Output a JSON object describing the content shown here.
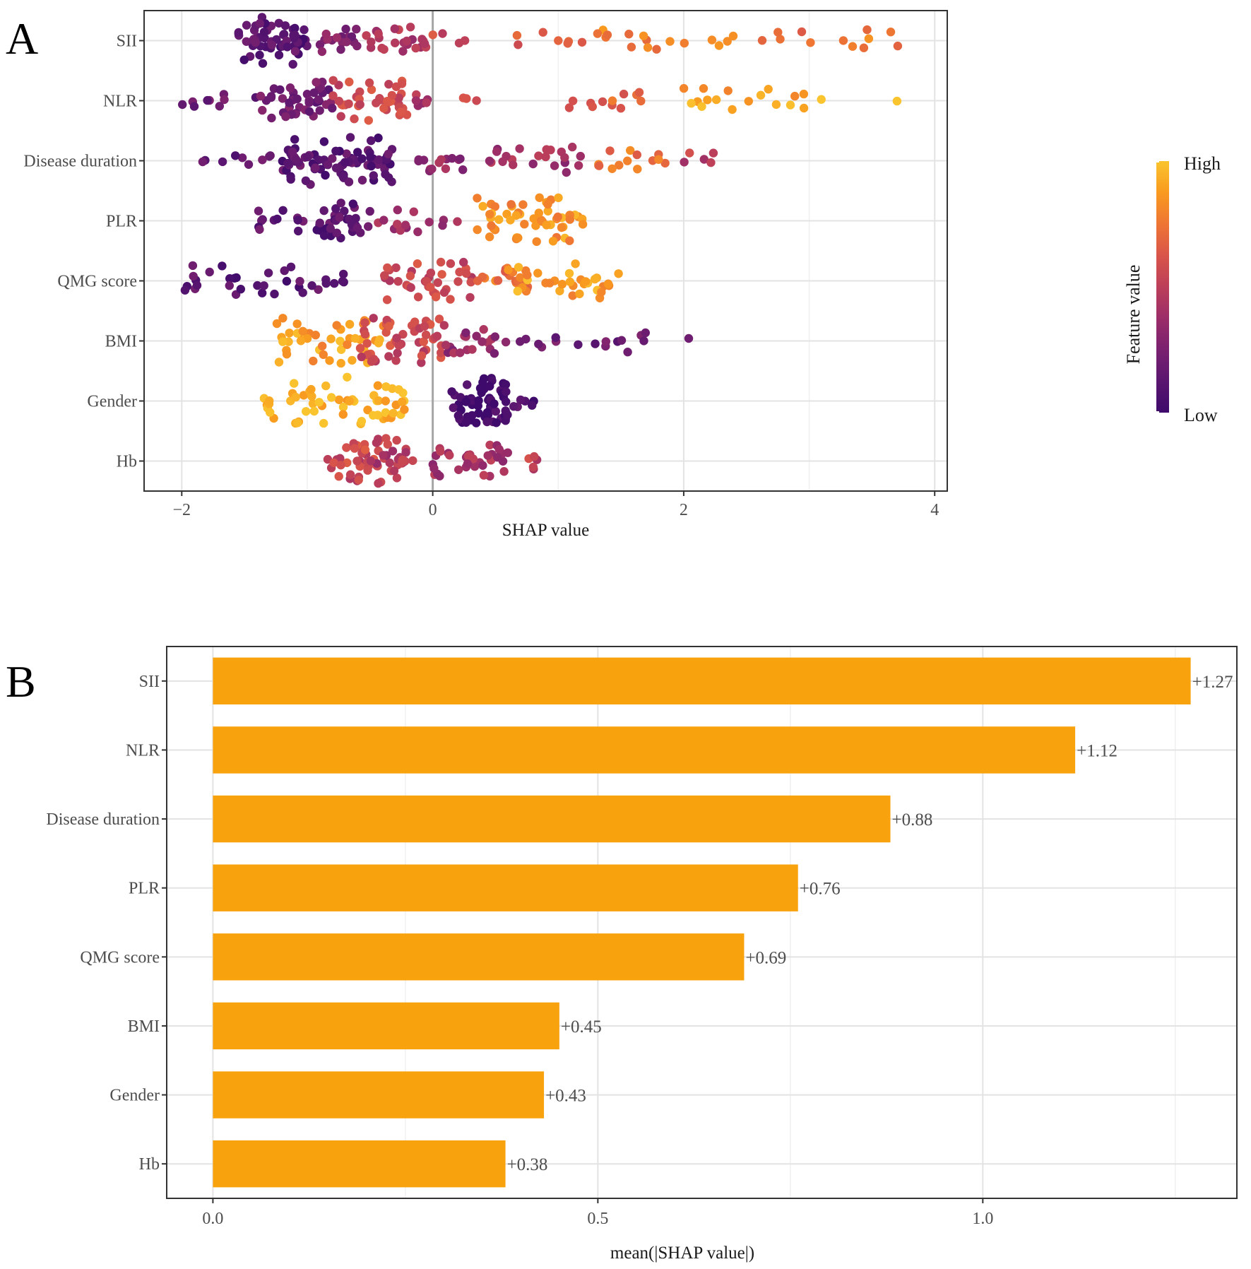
{
  "chart_data": [
    {
      "panel": "A",
      "type": "scatter",
      "subtype": "shap-beeswarm",
      "features": [
        "SII",
        "NLR",
        "Disease duration",
        "PLR",
        "QMG score",
        "BMI",
        "Gender",
        "Hb"
      ],
      "xlabel": "SHAP value",
      "xlim": [
        -2.3,
        4.1
      ],
      "xticks": [
        -2,
        0,
        2,
        4
      ],
      "xtick_labels": [
        "−2",
        "0",
        "2",
        "4"
      ],
      "zero_line": 0,
      "legend": {
        "title": "Feature value",
        "high_label": "High",
        "low_label": "Low",
        "placement": "right",
        "colors": [
          "#3e0a6b",
          "#5a1670",
          "#7a2170",
          "#9b2d68",
          "#bc3f5a",
          "#d9554a",
          "#ee7534",
          "#f99a1f",
          "#fac42e"
        ]
      },
      "series": [
        {
          "name": "SII",
          "ranges": [
            [
              -1.55,
              -1.0,
              0.12,
              60
            ],
            [
              -1.0,
              -0.6,
              0.28,
              18
            ],
            [
              -0.55,
              -0.05,
              0.45,
              24
            ],
            [
              0.0,
              0.3,
              0.55,
              4
            ],
            [
              0.6,
              1.2,
              0.6,
              7
            ],
            [
              1.3,
              2.3,
              0.8,
              14
            ],
            [
              2.3,
              3.8,
              0.75,
              14
            ]
          ]
        },
        {
          "name": "NLR",
          "ranges": [
            [
              -2.0,
              -1.3,
              0.2,
              12
            ],
            [
              -1.3,
              -0.8,
              0.22,
              40
            ],
            [
              -0.8,
              -0.2,
              0.55,
              42
            ],
            [
              -0.2,
              0.1,
              0.45,
              6
            ],
            [
              0.2,
              0.45,
              0.6,
              3
            ],
            [
              1.05,
              1.7,
              0.7,
              12
            ],
            [
              2.0,
              3.3,
              0.9,
              18
            ],
            [
              3.7,
              3.7,
              0.9,
              1
            ]
          ]
        },
        {
          "name": "Disease duration",
          "ranges": [
            [
              -1.85,
              -1.0,
              0.15,
              12
            ],
            [
              -1.2,
              -0.3,
              0.12,
              80
            ],
            [
              -0.15,
              0.3,
              0.35,
              14
            ],
            [
              0.45,
              1.2,
              0.4,
              22
            ],
            [
              1.3,
              1.9,
              0.75,
              14
            ],
            [
              2.0,
              2.25,
              0.5,
              5
            ]
          ]
        },
        {
          "name": "PLR",
          "ranges": [
            [
              -1.45,
              -1.0,
              0.15,
              12
            ],
            [
              -0.95,
              -0.5,
              0.12,
              34
            ],
            [
              -0.45,
              0.2,
              0.4,
              14
            ],
            [
              0.35,
              1.2,
              0.85,
              55
            ]
          ]
        },
        {
          "name": "QMG score",
          "ranges": [
            [
              -2.02,
              -1.0,
              0.12,
              26
            ],
            [
              -1.0,
              -0.7,
              0.15,
              8
            ],
            [
              -0.4,
              0.35,
              0.55,
              40
            ],
            [
              0.35,
              0.8,
              0.72,
              20
            ],
            [
              0.6,
              1.5,
              0.88,
              34
            ]
          ]
        },
        {
          "name": "BMI",
          "ranges": [
            [
              -1.25,
              -0.3,
              0.88,
              50
            ],
            [
              -0.6,
              0.1,
              0.55,
              50
            ],
            [
              0.1,
              0.6,
              0.35,
              20
            ],
            [
              0.6,
              1.7,
              0.2,
              16
            ],
            [
              2.04,
              2.04,
              0.1,
              1
            ]
          ]
        },
        {
          "name": "Gender",
          "ranges": [
            [
              -1.43,
              -0.2,
              0.96,
              60
            ],
            [
              0.15,
              0.6,
              0.02,
              60
            ],
            [
              0.6,
              0.9,
              0.06,
              6
            ]
          ]
        },
        {
          "name": "Hb",
          "ranges": [
            [
              -0.85,
              -0.2,
              0.55,
              50
            ],
            [
              -0.5,
              -0.15,
              0.45,
              15
            ],
            [
              0.0,
              0.6,
              0.42,
              35
            ],
            [
              0.75,
              0.85,
              0.5,
              5
            ]
          ]
        }
      ]
    },
    {
      "panel": "B",
      "type": "bar",
      "orientation": "horizontal",
      "categories": [
        "SII",
        "NLR",
        "Disease duration",
        "PLR",
        "QMG score",
        "BMI",
        "Gender",
        "Hb"
      ],
      "values": [
        1.27,
        1.12,
        0.88,
        0.76,
        0.69,
        0.45,
        0.43,
        0.38
      ],
      "value_labels": [
        "+1.27",
        "+1.12",
        "+0.88",
        "+0.76",
        "+0.69",
        "+0.45",
        "+0.43",
        "+0.38"
      ],
      "xlabel": "mean(|SHAP value|)",
      "xlim": [
        -0.06,
        1.33
      ],
      "xticks": [
        0,
        0.5,
        1.0
      ],
      "xtick_labels": [
        "0.0",
        "0.5",
        "1.0"
      ],
      "bar_color": "#f8a20e"
    }
  ]
}
